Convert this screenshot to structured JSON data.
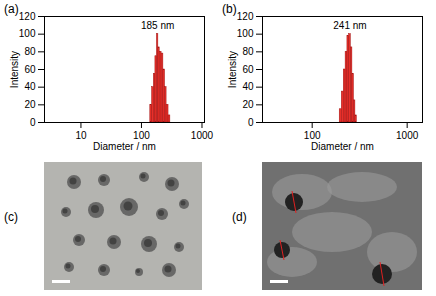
{
  "chart_data": [
    {
      "type": "histogram",
      "title": "(a)",
      "annotation": "185 nm",
      "x_label": "Diameter / nm",
      "y_label": "Intensity",
      "log": "x",
      "color": "#e8302a",
      "bins": [
        140,
        150,
        160,
        170,
        180,
        190,
        200,
        215,
        230,
        245,
        260,
        280,
        300
      ],
      "counts": [
        20,
        40,
        55,
        75,
        100,
        85,
        80,
        78,
        60,
        40,
        20,
        8
      ],
      "xlim": [
        2.5,
        1100
      ],
      "xticks": [
        10,
        100,
        1000
      ],
      "ylim": [
        0,
        120
      ],
      "yticks": [
        0,
        20,
        40,
        60,
        80,
        100,
        120
      ]
    },
    {
      "type": "histogram",
      "title": "(b)",
      "annotation": "241 nm",
      "x_label": "Diameter / nm",
      "y_label": "Intensity",
      "log": "x",
      "color": "#e8302a",
      "bins": [
        195,
        205,
        215,
        225,
        235,
        245,
        255,
        265,
        275,
        285,
        295
      ],
      "counts": [
        15,
        35,
        60,
        80,
        98,
        100,
        85,
        55,
        25,
        8
      ],
      "xlim": [
        30,
        1450
      ],
      "xticks": [
        100,
        1000
      ],
      "ylim": [
        0,
        120
      ],
      "yticks": [
        0,
        20,
        40,
        60,
        80,
        100,
        120
      ]
    }
  ],
  "images": [
    {
      "label": "(c)"
    },
    {
      "label": "(d)"
    }
  ]
}
